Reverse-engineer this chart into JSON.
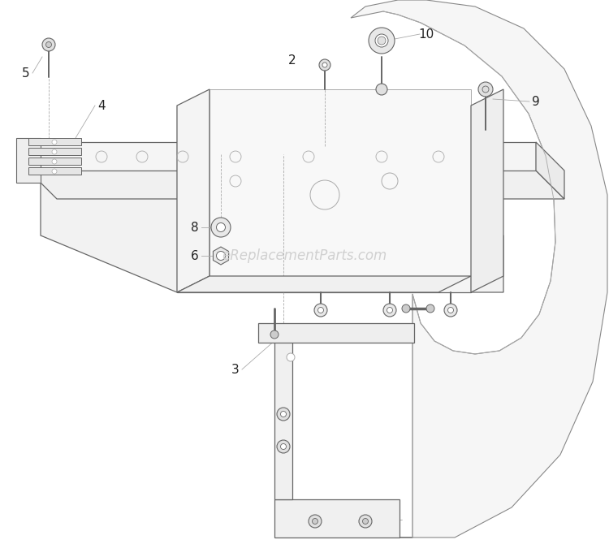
{
  "watermark": "eReplacementParts.com",
  "bg_color": "#ffffff",
  "line_color": "#aaaaaa",
  "edge_color": "#888888",
  "dark_color": "#666666",
  "label_color": "#222222",
  "lw_main": 0.9,
  "lw_thin": 0.6,
  "lw_label": 0.5
}
